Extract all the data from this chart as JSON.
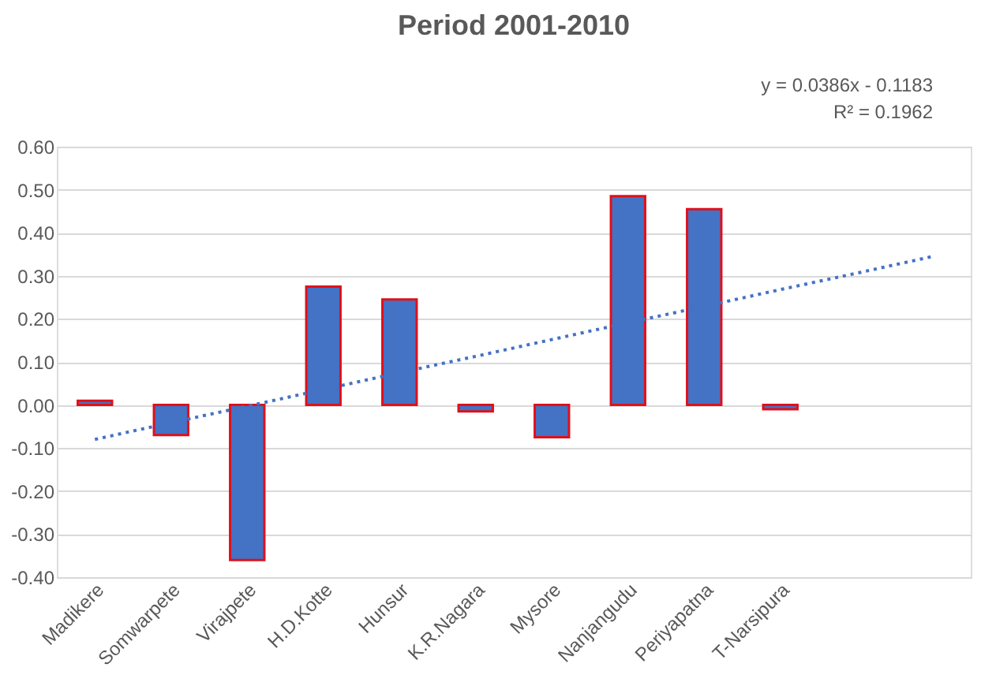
{
  "chart_data": {
    "type": "bar",
    "title": "Period 2001-2010",
    "categories": [
      "Madikere",
      "Somwarpete",
      "Virajpete",
      "H.D.Kotte",
      "Hunsur",
      "K.R.Nagara",
      "Mysore",
      "Nanjangudu",
      "Periyapatna",
      "T-Narsipura",
      null,
      null
    ],
    "series": [
      {
        "color": "#4472c4",
        "values": [
          0.01,
          -0.07,
          -0.36,
          0.275,
          0.245,
          -0.015,
          -0.075,
          0.485,
          0.455,
          -0.01,
          null,
          null
        ]
      },
      {
        "type": "line",
        "color": "#4472c4",
        "line_style": "dotted",
        "marker": "none",
        "values": [
          -0.08,
          -0.041,
          -0.003,
          0.036,
          0.075,
          0.113,
          0.152,
          0.191,
          0.229,
          0.268,
          0.306,
          0.345
        ]
      }
    ],
    "ylim": [
      -0.4,
      0.6
    ],
    "yticks": [
      {
        "value": -0.4,
        "label": "-0.40"
      },
      {
        "value": -0.3,
        "label": "-0.30"
      },
      {
        "value": -0.2,
        "label": "-0.20"
      },
      {
        "value": -0.1,
        "label": "-0.10"
      },
      {
        "value": 0,
        "label": "0.00"
      },
      {
        "value": 0.1,
        "label": "0.10"
      },
      {
        "value": 0.2,
        "label": "0.20"
      },
      {
        "value": 0.3,
        "label": "0.30"
      },
      {
        "value": 0.4,
        "label": "0.40"
      },
      {
        "value": 0.5,
        "label": "0.50"
      },
      {
        "value": 0.6,
        "label": "0.60"
      }
    ],
    "grid": "y",
    "annotations": [
      "y = 0.0386x - 0.1183",
      "R² = 0.1962"
    ]
  }
}
